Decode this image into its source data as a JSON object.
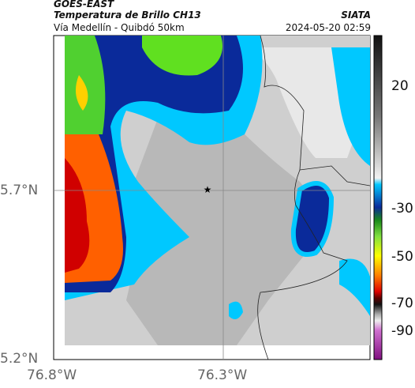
{
  "header": {
    "satellite": "GOES-EAST",
    "product": "Temperatura de Brillo CH13",
    "route": "Vía Medellín - Quibdó 50km",
    "source": "SIATA",
    "datetime": "2024-05-20 02:59"
  },
  "axes": {
    "y_labels": [
      "5.7°N",
      "5.2°N"
    ],
    "x_labels": [
      "76.8°W",
      "76.3°W"
    ]
  },
  "colorbar": {
    "ticks": [
      20,
      -30,
      -50,
      -70,
      -90
    ]
  }
}
